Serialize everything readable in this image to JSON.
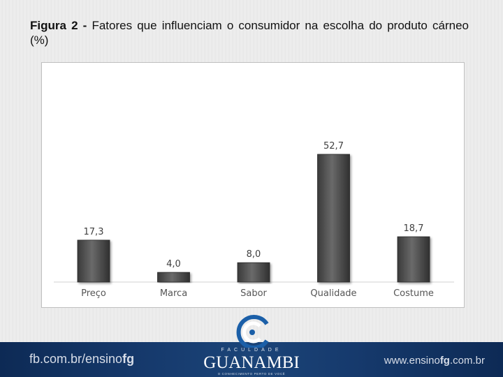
{
  "caption": {
    "label": "Figura 2 -",
    "text": "Fatores que influenciam o consumidor na escolha do produto cárneo (%)"
  },
  "chart_data": {
    "type": "bar",
    "categories": [
      "Preço",
      "Marca",
      "Sabor",
      "Qualidade",
      "Costume"
    ],
    "values": [
      17.3,
      4.0,
      8.0,
      52.7,
      18.7
    ],
    "value_labels": [
      "17,3",
      "4,0",
      "8,0",
      "52,7",
      "18,7"
    ],
    "title": "",
    "xlabel": "",
    "ylabel": "",
    "ylim": [
      0,
      60
    ],
    "grid": false,
    "legend": "none",
    "bar_color": "#4a4a4a"
  },
  "footer": {
    "left_text": "fb.com.br/ensino",
    "left_bold": "fg",
    "right_text": "www.ensino",
    "right_bold": "fg",
    "right_tail": ".com.br",
    "logo_small": "FACULDADE",
    "logo_name": "GUANAMBI",
    "logo_tagline": "O CONHECIMENTO PERTO DE VOCÊ"
  }
}
